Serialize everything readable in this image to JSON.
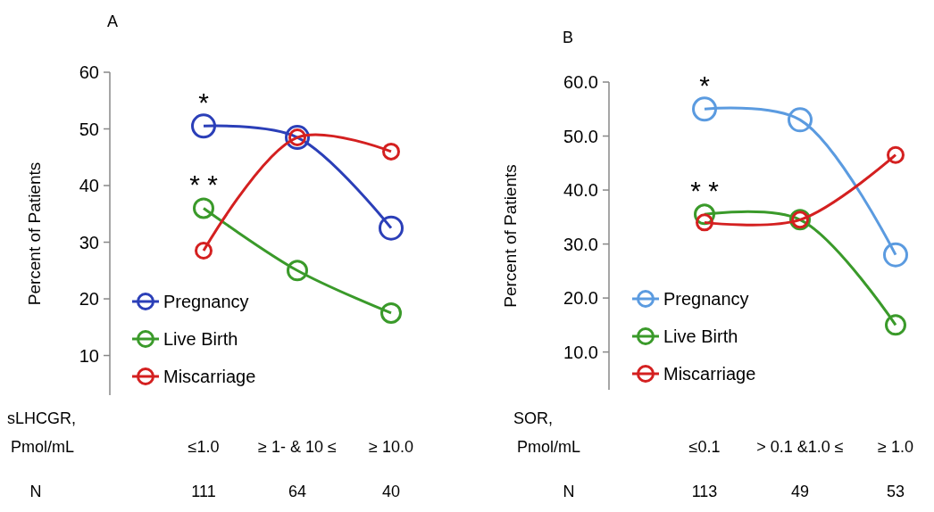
{
  "chart_data": [
    {
      "type": "line",
      "title": "A",
      "ylabel": "Percent of Patients",
      "xlabel": "sLHCGR,\nPmol/mL",
      "categories": [
        "≤1.0",
        "≥ 1- & 10 ≤",
        "≥ 10.0"
      ],
      "series": [
        {
          "name": "Pregnancy",
          "color": "#2b3fb8",
          "values": [
            50.5,
            48.5,
            32.5
          ]
        },
        {
          "name": "Live Birth",
          "color": "#3a9a2a",
          "values": [
            36,
            25,
            17.5
          ]
        },
        {
          "name": "Miscarriage",
          "color": "#d42020",
          "values": [
            28.5,
            48.5,
            46
          ]
        }
      ],
      "ylim": [
        3,
        60
      ],
      "yticks": [
        10,
        20,
        30,
        40,
        50,
        60
      ],
      "marker": "circle",
      "legend": "bottom left",
      "grid": false,
      "annotations": [
        {
          "text": "*",
          "x": "≤1.0",
          "y": 50.5
        },
        {
          "text": "* *",
          "x": "≤1.0",
          "y": 36
        },
        "N",
        "111",
        "64",
        "40"
      ]
    },
    {
      "type": "line",
      "title": "B",
      "ylabel": "Percent of Patients",
      "xlabel": "SOR,\nPmol/mL",
      "categories": [
        "≤0.1",
        "> 0.1 &1.0 ≤",
        "≥ 1.0"
      ],
      "series": [
        {
          "name": "Pregnancy",
          "color": "#5b9be0",
          "values": [
            55,
            53,
            28
          ]
        },
        {
          "name": "Live Birth",
          "color": "#3a9a2a",
          "values": [
            35.5,
            34.5,
            15
          ]
        },
        {
          "name": "Miscarriage",
          "color": "#d42020",
          "values": [
            34,
            34.5,
            46.5
          ]
        }
      ],
      "ylim": [
        3,
        60
      ],
      "yticks": [
        {
          "value": 10,
          "label": "10.0"
        },
        {
          "value": 20,
          "label": "20.0"
        },
        {
          "value": 30,
          "label": "30.0"
        },
        {
          "value": 40,
          "label": "40.0"
        },
        {
          "value": 50,
          "label": "50.0"
        },
        {
          "value": 60,
          "label": "60.0"
        }
      ],
      "marker": "circle",
      "legend": "bottom left",
      "grid": false,
      "annotations": [
        {
          "text": "*",
          "x": "≤0.1",
          "y": 55
        },
        {
          "text": "* *",
          "x": "≤0.1",
          "y": 35.5
        },
        "N",
        "113",
        "49",
        "53"
      ]
    }
  ]
}
